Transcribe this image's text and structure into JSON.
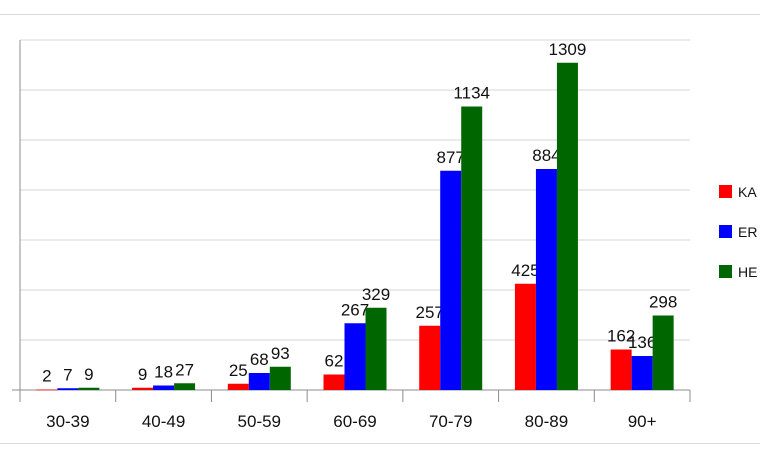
{
  "chart_data": {
    "type": "bar",
    "categories": [
      "30-39",
      "40-49",
      "50-59",
      "60-69",
      "70-79",
      "80-89",
      "90+"
    ],
    "series": [
      {
        "name": "KA",
        "color": "#ff0000",
        "values": [
          2,
          9,
          25,
          62,
          257,
          425,
          162
        ]
      },
      {
        "name": "ER",
        "color": "#0000ff",
        "values": [
          7,
          18,
          68,
          267,
          877,
          884,
          136
        ]
      },
      {
        "name": "HE",
        "color": "#006600",
        "values": [
          9,
          27,
          93,
          329,
          1134,
          1309,
          298
        ]
      }
    ],
    "ylim": [
      0,
      1400
    ],
    "grid": true,
    "legend": "right"
  }
}
